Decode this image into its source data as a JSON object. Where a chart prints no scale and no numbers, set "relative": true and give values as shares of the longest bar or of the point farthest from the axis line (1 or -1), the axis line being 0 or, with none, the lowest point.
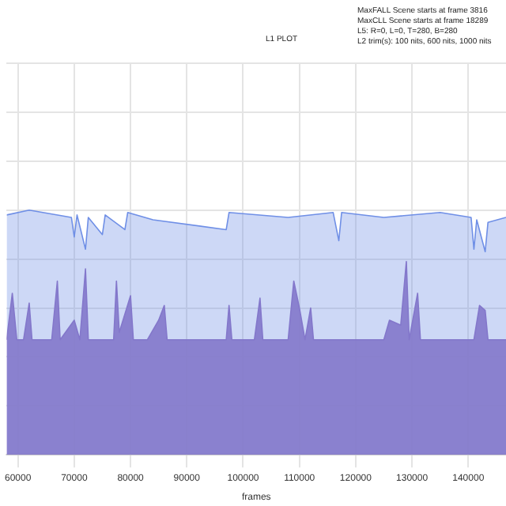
{
  "chart_data": {
    "type": "area",
    "title": "L1 PLOT",
    "xlabel": "frames",
    "relative": true,
    "grid": true,
    "annotations": [
      "MaxFALL Scene starts at frame 3816",
      "MaxCLL Scene starts at frame 18289",
      "L5: R=0, L=0, T=280, B=280",
      "L2 trim(s): 100 nits, 600 nits, 1000 nits"
    ],
    "xlim": [
      58000,
      146700
    ],
    "xticks": [
      60000,
      70000,
      80000,
      90000,
      100000,
      110000,
      120000,
      130000,
      140000
    ],
    "series": [
      {
        "color": "#6f8fe6",
        "x": [
          58000,
          62000,
          69500,
          70000,
          70500,
          72000,
          72500,
          75000,
          75500,
          79000,
          79500,
          84000,
          97000,
          97500,
          108000,
          116000,
          117000,
          117500,
          125000,
          135000,
          140500,
          141000,
          141500,
          143000,
          143500,
          146700
        ],
        "values": [
          0.98,
          1.0,
          0.97,
          0.89,
          0.98,
          0.84,
          0.97,
          0.9,
          0.98,
          0.92,
          0.99,
          0.96,
          0.92,
          0.99,
          0.97,
          0.99,
          0.875,
          0.99,
          0.97,
          0.99,
          0.97,
          0.84,
          0.96,
          0.83,
          0.95,
          0.97
        ]
      },
      {
        "color": "#8e6bbd",
        "x": [
          58000,
          59000,
          59800,
          61000,
          62000,
          62500,
          66000,
          67000,
          67500,
          70000,
          71000,
          72000,
          72500,
          77000,
          77500,
          78000,
          80000,
          80500,
          83000,
          85000,
          86000,
          86500,
          93000,
          97000,
          97500,
          98000,
          102000,
          103000,
          103500,
          108000,
          109000,
          110000,
          111000,
          112000,
          112500,
          125000,
          126000,
          128000,
          129000,
          129500,
          131000,
          131500,
          141000,
          142000,
          143000,
          143500,
          146700
        ],
        "values": [
          0.47,
          0.66,
          0.47,
          0.47,
          0.62,
          0.47,
          0.47,
          0.71,
          0.47,
          0.55,
          0.47,
          0.76,
          0.47,
          0.47,
          0.71,
          0.5,
          0.65,
          0.47,
          0.47,
          0.55,
          0.61,
          0.47,
          0.47,
          0.47,
          0.61,
          0.47,
          0.47,
          0.64,
          0.47,
          0.47,
          0.71,
          0.6,
          0.47,
          0.6,
          0.47,
          0.47,
          0.55,
          0.53,
          0.79,
          0.47,
          0.66,
          0.47,
          0.47,
          0.61,
          0.59,
          0.47,
          0.47
        ]
      }
    ]
  }
}
